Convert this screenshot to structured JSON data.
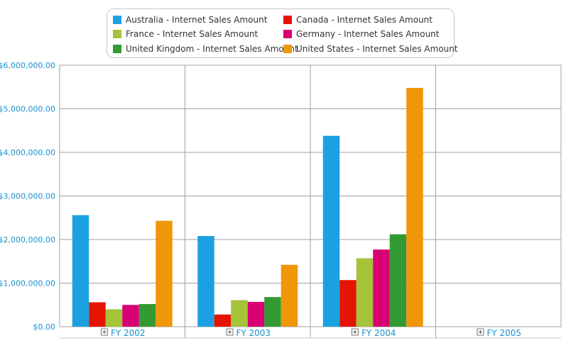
{
  "chart_data": {
    "type": "bar",
    "categories": [
      "FY 2002",
      "FY 2003",
      "FY 2004",
      "FY 2005"
    ],
    "series": [
      {
        "name": "Australia - Internet Sales Amount",
        "color": "#1ba1e2",
        "values": [
          2560000,
          2080000,
          4380000,
          0
        ]
      },
      {
        "name": "Canada - Internet Sales Amount",
        "color": "#e51400",
        "values": [
          560000,
          280000,
          1070000,
          0
        ]
      },
      {
        "name": "France - Internet Sales Amount",
        "color": "#a4c439",
        "values": [
          400000,
          610000,
          1570000,
          0
        ]
      },
      {
        "name": "Germany - Internet Sales Amount",
        "color": "#d80073",
        "values": [
          500000,
          570000,
          1770000,
          0
        ]
      },
      {
        "name": "United Kingdom - Internet Sales Amount",
        "color": "#339933",
        "values": [
          520000,
          680000,
          2120000,
          0
        ]
      },
      {
        "name": "United States - Internet Sales Amount",
        "color": "#f09609",
        "values": [
          2430000,
          1420000,
          5480000,
          0
        ]
      }
    ],
    "y_ticks": [
      "$0.00",
      "$1,000,000.00",
      "$2,000,000.00",
      "$3,000,000.00",
      "$4,000,000.00",
      "$5,000,000.00",
      "$6,000,000.00"
    ],
    "ylim": [
      0,
      6000000
    ],
    "grid": true,
    "legend_position": "top-center",
    "expand_icon": "plus-box-icon"
  }
}
